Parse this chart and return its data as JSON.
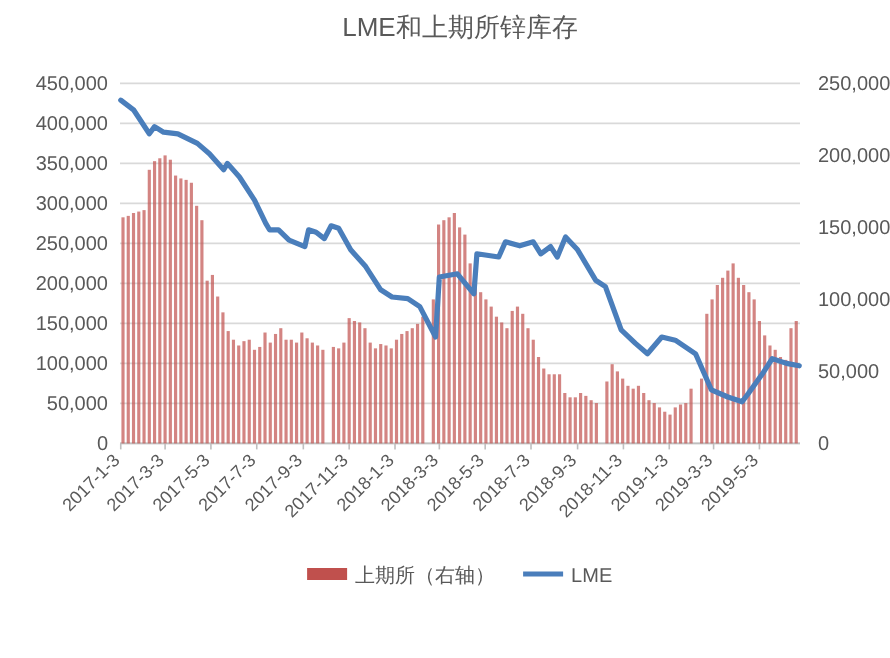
{
  "chart_data": {
    "type": "bar",
    "title": "LME和上期所锌库存",
    "x": [
      "2017-01-06",
      "2017-01-13",
      "2017-01-20",
      "2017-01-27",
      "2017-02-03",
      "2017-02-10",
      "2017-02-17",
      "2017-02-24",
      "2017-03-03",
      "2017-03-10",
      "2017-03-17",
      "2017-03-24",
      "2017-03-31",
      "2017-04-07",
      "2017-04-14",
      "2017-04-21",
      "2017-04-28",
      "2017-05-05",
      "2017-05-12",
      "2017-05-19",
      "2017-05-26",
      "2017-06-02",
      "2017-06-09",
      "2017-06-16",
      "2017-06-23",
      "2017-06-30",
      "2017-07-07",
      "2017-07-14",
      "2017-07-21",
      "2017-07-28",
      "2017-08-04",
      "2017-08-11",
      "2017-08-18",
      "2017-08-25",
      "2017-09-01",
      "2017-09-08",
      "2017-09-15",
      "2017-09-22",
      "2017-09-29",
      "2017-10-13",
      "2017-10-20",
      "2017-10-27",
      "2017-11-03",
      "2017-11-10",
      "2017-11-17",
      "2017-11-24",
      "2017-12-01",
      "2017-12-08",
      "2017-12-15",
      "2017-12-22",
      "2017-12-29",
      "2018-01-05",
      "2018-01-12",
      "2018-01-19",
      "2018-01-26",
      "2018-02-02",
      "2018-02-09",
      "2018-02-23",
      "2018-03-02",
      "2018-03-09",
      "2018-03-16",
      "2018-03-23",
      "2018-03-30",
      "2018-04-06",
      "2018-04-13",
      "2018-04-20",
      "2018-04-27",
      "2018-05-04",
      "2018-05-11",
      "2018-05-18",
      "2018-05-25",
      "2018-06-01",
      "2018-06-08",
      "2018-06-15",
      "2018-06-22",
      "2018-06-29",
      "2018-07-06",
      "2018-07-13",
      "2018-07-20",
      "2018-07-27",
      "2018-08-03",
      "2018-08-10",
      "2018-08-17",
      "2018-08-24",
      "2018-08-31",
      "2018-09-07",
      "2018-09-14",
      "2018-09-21",
      "2018-09-28",
      "2018-10-12",
      "2018-10-19",
      "2018-10-26",
      "2018-11-02",
      "2018-11-09",
      "2018-11-16",
      "2018-11-23",
      "2018-11-30",
      "2018-12-07",
      "2018-12-14",
      "2018-12-21",
      "2018-12-28",
      "2019-01-04",
      "2019-01-11",
      "2019-01-18",
      "2019-01-25",
      "2019-02-01",
      "2019-02-15",
      "2019-02-22",
      "2019-03-01",
      "2019-03-08",
      "2019-03-15",
      "2019-03-22",
      "2019-03-29",
      "2019-04-05",
      "2019-04-12",
      "2019-04-19",
      "2019-04-26",
      "2019-05-03",
      "2019-05-10",
      "2019-05-17",
      "2019-05-24",
      "2019-05-31",
      "2019-06-07",
      "2019-06-14",
      "2019-06-21"
    ],
    "series": [
      {
        "name": "上期所（右轴）",
        "axis": "y2",
        "color": "#c0504d",
        "values": [
          157000,
          158000,
          160000,
          161000,
          162000,
          190000,
          196000,
          198000,
          200000,
          197000,
          186000,
          184000,
          183000,
          181000,
          165000,
          155000,
          113000,
          117000,
          102000,
          91000,
          78000,
          72000,
          68000,
          71000,
          72000,
          65000,
          67000,
          77000,
          70000,
          76000,
          80000,
          72000,
          72000,
          70000,
          77000,
          73000,
          70000,
          68000,
          65000,
          67000,
          66000,
          70000,
          87000,
          85000,
          84000,
          80000,
          70000,
          66000,
          69000,
          68000,
          66000,
          72000,
          76000,
          78000,
          80000,
          83000,
          88000,
          100000,
          152000,
          155000,
          157000,
          160000,
          150000,
          145000,
          125000,
          112000,
          105000,
          100000,
          95000,
          88000,
          84000,
          80000,
          92000,
          95000,
          90000,
          80000,
          72000,
          60000,
          52000,
          48000,
          48000,
          48000,
          35000,
          32000,
          32000,
          35000,
          33000,
          30000,
          28000,
          43000,
          55000,
          50000,
          45000,
          40000,
          38000,
          40000,
          35000,
          30000,
          28000,
          25000,
          22000,
          20000,
          25000,
          27000,
          28000,
          38000,
          45000,
          90000,
          100000,
          110000,
          115000,
          120000,
          125000,
          115000,
          110000,
          105000,
          100000,
          85000,
          75000,
          68000,
          65000,
          60000,
          58000,
          80000,
          85000
        ]
      },
      {
        "name": "LME",
        "type": "line",
        "color": "#4a7ebb",
        "x": [
          "2017-01-03",
          "2017-01-20",
          "2017-02-10",
          "2017-02-17",
          "2017-03-01",
          "2017-03-20",
          "2017-04-15",
          "2017-05-01",
          "2017-05-20",
          "2017-05-25",
          "2017-06-10",
          "2017-06-30",
          "2017-07-15",
          "2017-07-20",
          "2017-08-01",
          "2017-08-15",
          "2017-09-05",
          "2017-09-10",
          "2017-09-20",
          "2017-10-01",
          "2017-10-10",
          "2017-10-20",
          "2017-11-05",
          "2017-11-25",
          "2017-12-15",
          "2017-12-30",
          "2018-01-20",
          "2018-02-05",
          "2018-02-26",
          "2018-03-03",
          "2018-03-27",
          "2018-04-18",
          "2018-04-22",
          "2018-05-21",
          "2018-05-30",
          "2018-06-18",
          "2018-07-06",
          "2018-07-16",
          "2018-07-29",
          "2018-08-07",
          "2018-08-18",
          "2018-09-03",
          "2018-09-27",
          "2018-10-10",
          "2018-10-31",
          "2018-11-19",
          "2018-12-05",
          "2018-12-24",
          "2019-01-11",
          "2019-02-07",
          "2019-02-28",
          "2019-03-22",
          "2019-04-10",
          "2019-04-18",
          "2019-05-07",
          "2019-05-20",
          "2019-06-08",
          "2019-06-25"
        ],
        "values": [
          429000,
          417000,
          387000,
          396000,
          389000,
          387000,
          375000,
          362000,
          342000,
          350000,
          333000,
          304000,
          275000,
          267000,
          267000,
          254000,
          246000,
          267000,
          264000,
          256000,
          272000,
          269000,
          242000,
          221000,
          192000,
          183000,
          181000,
          171000,
          133000,
          208000,
          212000,
          187000,
          237000,
          233000,
          252000,
          247000,
          252000,
          237000,
          246000,
          233000,
          258000,
          242000,
          204000,
          196000,
          142000,
          125000,
          112000,
          133000,
          129000,
          112000,
          67000,
          58000,
          52000,
          62000,
          87000,
          106000,
          100000,
          97000
        ]
      }
    ],
    "xlim": [
      "2017-01-02",
      "2019-06-26"
    ],
    "xticks": [
      {
        "value": "2017-01-03",
        "label": "2017-1-3"
      },
      {
        "value": "2017-03-03",
        "label": "2017-3-3"
      },
      {
        "value": "2017-05-03",
        "label": "2017-5-3"
      },
      {
        "value": "2017-07-03",
        "label": "2017-7-3"
      },
      {
        "value": "2017-09-03",
        "label": "2017-9-3"
      },
      {
        "value": "2017-11-03",
        "label": "2017-11-3"
      },
      {
        "value": "2018-01-03",
        "label": "2018-1-3"
      },
      {
        "value": "2018-03-03",
        "label": "2018-3-3"
      },
      {
        "value": "2018-05-03",
        "label": "2018-5-3"
      },
      {
        "value": "2018-07-03",
        "label": "2018-7-3"
      },
      {
        "value": "2018-09-03",
        "label": "2018-9-3"
      },
      {
        "value": "2018-11-03",
        "label": "2018-11-3"
      },
      {
        "value": "2019-01-03",
        "label": "2019-1-3"
      },
      {
        "value": "2019-03-03",
        "label": "2019-3-3"
      },
      {
        "value": "2019-05-03",
        "label": "2019-5-3"
      }
    ],
    "ylim": [
      0,
      450000
    ],
    "yticks": [
      0,
      {
        "value": 50000,
        "label": "50,000"
      },
      {
        "value": 100000,
        "label": "100,000"
      },
      {
        "value": 150000,
        "label": "150,000"
      },
      {
        "value": 200000,
        "label": "200,000"
      },
      {
        "value": 250000,
        "label": "250,000"
      },
      {
        "value": 300000,
        "label": "300,000"
      },
      {
        "value": 350000,
        "label": "350,000"
      },
      {
        "value": 400000,
        "label": "400,000"
      },
      {
        "value": 450000,
        "label": "450,000"
      }
    ],
    "y2lim": [
      0,
      250000
    ],
    "y2ticks": [
      0,
      {
        "value": 50000,
        "label": "50,000"
      },
      {
        "value": 100000,
        "label": "100,000"
      },
      {
        "value": 150000,
        "label": "150,000"
      },
      {
        "value": 200000,
        "label": "200,000"
      },
      {
        "value": 250000,
        "label": "250,000"
      }
    ],
    "grid": "y",
    "legend": "bottom"
  }
}
